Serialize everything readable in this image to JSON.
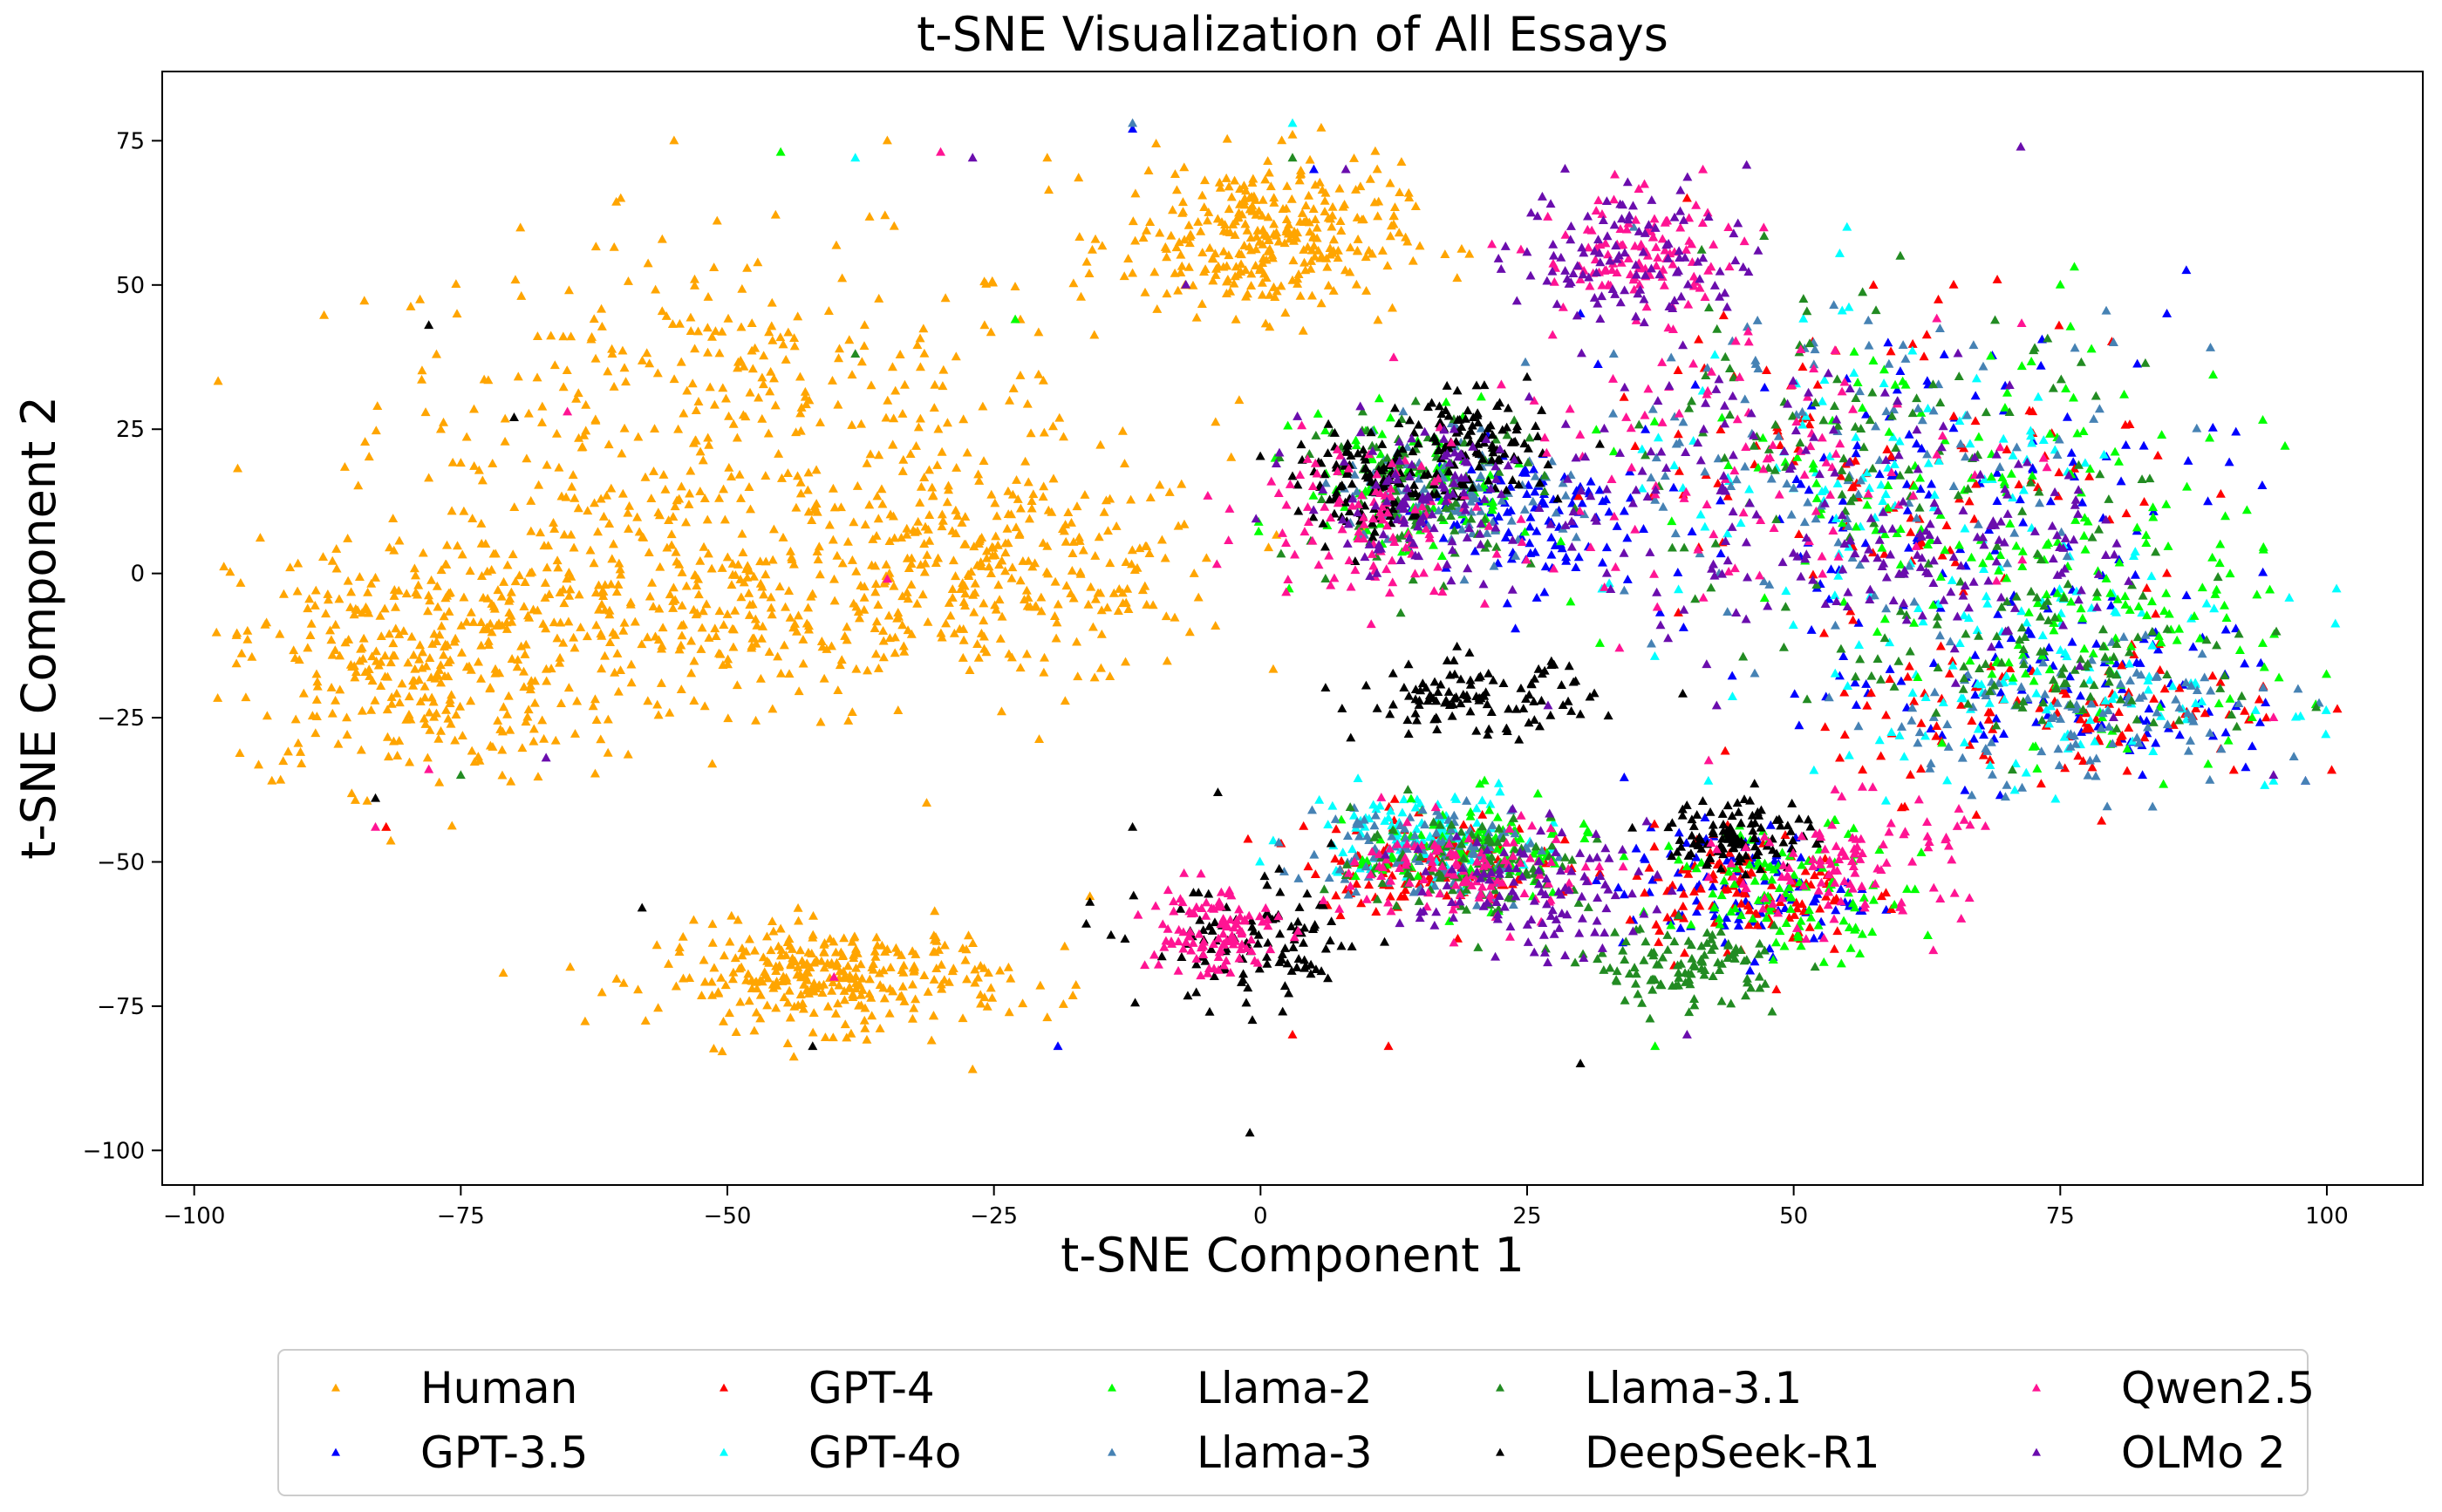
{
  "chart_data": {
    "type": "scatter",
    "title": "t-SNE Visualization of All Essays",
    "xlabel": "t-SNE Component 1",
    "ylabel": "t-SNE Component 2",
    "xlim": [
      -103,
      109
    ],
    "ylim": [
      -106,
      87
    ],
    "x_ticks": [
      -100,
      -75,
      -50,
      -25,
      0,
      25,
      50,
      75,
      100
    ],
    "y_ticks": [
      -100,
      -75,
      -50,
      -25,
      0,
      25,
      50,
      75
    ],
    "x_tick_labels": [
      "−100",
      "−75",
      "−50",
      "−25",
      "0",
      "25",
      "50",
      "75",
      "100"
    ],
    "y_tick_labels": [
      "−100",
      "−75",
      "−50",
      "−25",
      "0",
      "25",
      "50",
      "75"
    ],
    "marker": "triangle",
    "grid": false,
    "legend_position": "bottom-outside",
    "legend_columns": 5,
    "series": [
      {
        "name": "Human",
        "color": "#FFA500",
        "clusters": [
          [
            -50,
            30,
            30,
            25
          ],
          [
            -25,
            0,
            20,
            18
          ],
          [
            -80,
            -15,
            15,
            20
          ],
          [
            -40,
            -70,
            15,
            8
          ],
          [
            0,
            58,
            12,
            12
          ],
          [
            -55,
            -5,
            22,
            20
          ]
        ],
        "sample_points": [
          [
            -95,
            -10
          ],
          [
            -60,
            65
          ],
          [
            -35,
            75
          ],
          [
            -20,
            72
          ],
          [
            -82,
            -44
          ],
          [
            -27,
            -86
          ],
          [
            -20,
            -77
          ],
          [
            -16,
            -56
          ],
          [
            3,
            76
          ],
          [
            13,
            59
          ],
          [
            4,
            42
          ],
          [
            -12,
            52
          ],
          [
            -2,
            30
          ],
          [
            -55,
            75
          ]
        ]
      },
      {
        "name": "GPT-3.5",
        "color": "#0000FF",
        "clusters": [
          [
            65,
            15,
            25,
            25
          ],
          [
            45,
            -55,
            10,
            10
          ],
          [
            25,
            10,
            10,
            12
          ],
          [
            75,
            -20,
            20,
            15
          ]
        ],
        "sample_points": [
          [
            -19,
            -82
          ],
          [
            -12,
            77
          ],
          [
            5,
            70
          ],
          [
            93,
            -30
          ],
          [
            98,
            -36
          ],
          [
            30,
            45
          ],
          [
            60,
            35
          ],
          [
            85,
            45
          ]
        ]
      },
      {
        "name": "GPT-4",
        "color": "#FF0000",
        "clusters": [
          [
            60,
            20,
            25,
            25
          ],
          [
            15,
            -50,
            10,
            8
          ],
          [
            45,
            -55,
            10,
            10
          ],
          [
            75,
            -25,
            20,
            12
          ]
        ],
        "sample_points": [
          [
            12,
            -82
          ],
          [
            -82,
            -44
          ],
          [
            3,
            -80
          ],
          [
            85,
            0
          ],
          [
            40,
            65
          ],
          [
            65,
            50
          ]
        ]
      },
      {
        "name": "GPT-4o",
        "color": "#00FFFF",
        "clusters": [
          [
            60,
            10,
            25,
            25
          ],
          [
            15,
            -45,
            10,
            8
          ],
          [
            75,
            -20,
            20,
            15
          ]
        ],
        "sample_points": [
          [
            3,
            78
          ],
          [
            42,
            -36
          ],
          [
            95,
            -36
          ],
          [
            -38,
            72
          ],
          [
            55,
            60
          ]
        ]
      },
      {
        "name": "Llama-2",
        "color": "#00FF00",
        "clusters": [
          [
            65,
            15,
            25,
            25
          ],
          [
            15,
            15,
            10,
            12
          ],
          [
            20,
            -48,
            10,
            8
          ],
          [
            80,
            -10,
            15,
            20
          ],
          [
            50,
            -55,
            10,
            10
          ]
        ],
        "sample_points": [
          [
            -45,
            73
          ],
          [
            -23,
            44
          ],
          [
            90,
            5
          ],
          [
            93,
            -25
          ],
          [
            75,
            50
          ],
          [
            37,
            -82
          ]
        ]
      },
      {
        "name": "Llama-3",
        "color": "#4682B4",
        "clusters": [
          [
            55,
            20,
            25,
            25
          ],
          [
            18,
            15,
            10,
            10
          ],
          [
            15,
            -48,
            10,
            8
          ],
          [
            75,
            -25,
            20,
            12
          ]
        ],
        "sample_points": [
          [
            -12,
            78
          ],
          [
            98,
            -36
          ],
          [
            80,
            40
          ],
          [
            35,
            60
          ]
        ]
      },
      {
        "name": "Llama-3.1",
        "color": "#228B22",
        "clusters": [
          [
            55,
            20,
            25,
            25
          ],
          [
            15,
            15,
            10,
            12
          ],
          [
            20,
            -50,
            10,
            8
          ],
          [
            75,
            -15,
            20,
            15
          ],
          [
            40,
            -68,
            8,
            6
          ]
        ],
        "sample_points": [
          [
            -75,
            -35
          ],
          [
            -38,
            38
          ],
          [
            3,
            72
          ],
          [
            90,
            -20
          ],
          [
            60,
            55
          ]
        ]
      },
      {
        "name": "DeepSeek-R1",
        "color": "#000000",
        "clusters": [
          [
            20,
            -22,
            10,
            6
          ],
          [
            0,
            -65,
            10,
            10
          ],
          [
            20,
            22,
            6,
            8
          ],
          [
            45,
            -45,
            6,
            6
          ],
          [
            10,
            15,
            6,
            8
          ]
        ],
        "sample_points": [
          [
            -78,
            43
          ],
          [
            -83,
            -39
          ],
          [
            -58,
            -58
          ],
          [
            -42,
            -82
          ],
          [
            -16,
            -57
          ],
          [
            -12,
            -44
          ],
          [
            -1,
            -97
          ],
          [
            -4,
            -38
          ],
          [
            30,
            -85
          ],
          [
            25,
            34
          ],
          [
            -70,
            27
          ]
        ]
      },
      {
        "name": "Qwen2.5",
        "color": "#FF1493",
        "clusters": [
          [
            45,
            20,
            25,
            25
          ],
          [
            10,
            10,
            10,
            12
          ],
          [
            -5,
            -62,
            6,
            8
          ],
          [
            20,
            -52,
            10,
            8
          ],
          [
            55,
            -50,
            10,
            10
          ],
          [
            35,
            55,
            8,
            10
          ]
        ],
        "sample_points": [
          [
            -83,
            -44
          ],
          [
            -65,
            28
          ],
          [
            -40,
            -70
          ],
          [
            -78,
            -34
          ],
          [
            -30,
            73
          ],
          [
            -35,
            -1
          ],
          [
            95,
            -25
          ]
        ]
      },
      {
        "name": "OLMo 2",
        "color": "#6A0DAD",
        "clusters": [
          [
            45,
            15,
            25,
            25
          ],
          [
            15,
            12,
            10,
            12
          ],
          [
            25,
            -55,
            10,
            10
          ],
          [
            35,
            55,
            10,
            12
          ],
          [
            65,
            5,
            15,
            15
          ]
        ],
        "sample_points": [
          [
            -67,
            -32
          ],
          [
            -27,
            72
          ],
          [
            8,
            70
          ],
          [
            -7,
            50
          ],
          [
            95,
            -35
          ],
          [
            40,
            -80
          ],
          [
            80,
            -25
          ]
        ]
      }
    ]
  }
}
